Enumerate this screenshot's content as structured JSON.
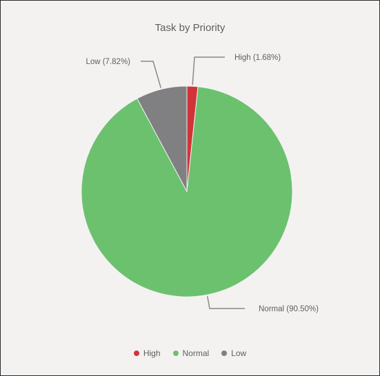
{
  "chart_data": {
    "type": "pie",
    "title": "Task by Priority",
    "legend_position": "bottom-center",
    "start_angle_deg": 0,
    "direction": "clockwise",
    "slices": [
      {
        "category": "High",
        "value": 1.68,
        "label": "High (1.68%)",
        "color": "#d13438"
      },
      {
        "category": "Normal",
        "value": 90.5,
        "label": "Normal (90.50%)",
        "color": "#6cc16f"
      },
      {
        "category": "Low",
        "value": 7.82,
        "label": "Low (7.82%)",
        "color": "#808083"
      }
    ]
  },
  "legend": {
    "items": [
      {
        "label": "High",
        "color": "#d13438"
      },
      {
        "label": "Normal",
        "color": "#6cc16f"
      },
      {
        "label": "Low",
        "color": "#808083"
      }
    ]
  },
  "colors": {
    "background": "#f3f2f1",
    "text": "#605e5c",
    "leader_line": "#8a8886"
  }
}
